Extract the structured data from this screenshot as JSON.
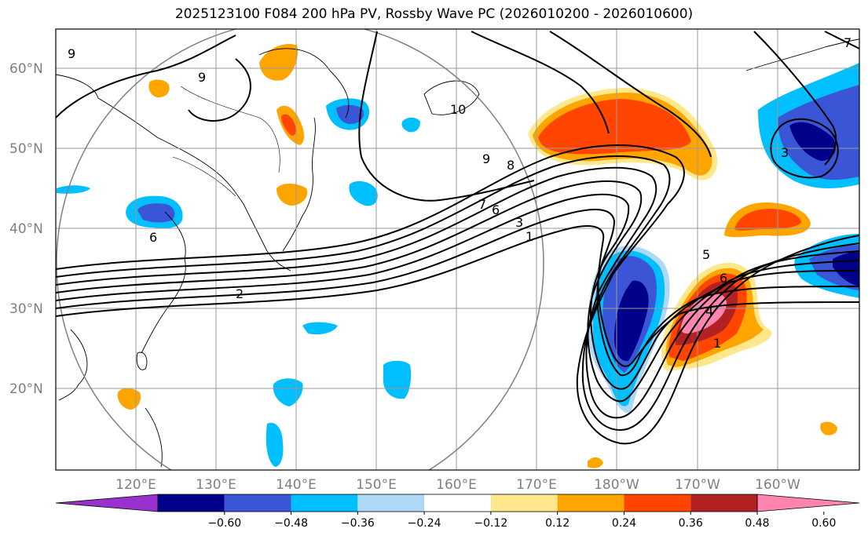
{
  "title": "2025123100 F084 200 hPa PV, Rossby Wave PC (2026010200 - 2026010600)",
  "map": {
    "lat_labels": [
      "60°N",
      "50°N",
      "40°N",
      "30°N",
      "20°N"
    ],
    "lon_labels": [
      "120°E",
      "130°E",
      "140°E",
      "150°E",
      "160°E",
      "170°E",
      "180°W",
      "170°W",
      "160°W"
    ],
    "contour_labels": [
      "9",
      "9",
      "10",
      "9",
      "8",
      "7",
      "6",
      "3",
      "1",
      "2",
      "6",
      "5",
      "6",
      "4",
      "1",
      "3",
      "7"
    ],
    "grid": true,
    "extent": {
      "lon_min": 110,
      "lon_max": 210,
      "lat_min": 10,
      "lat_max": 65
    }
  },
  "colorbar": {
    "ticks": [
      "−0.60",
      "−0.48",
      "−0.36",
      "−0.24",
      "−0.12",
      "0.12",
      "0.24",
      "0.36",
      "0.48",
      "0.60"
    ],
    "colors": [
      "#9932cc",
      "#00008b",
      "#3a56d6",
      "#00bfff",
      "#add8f6",
      "#ffffff",
      "#ffe88c",
      "#ffa500",
      "#ff4500",
      "#b22222",
      "#ff85b0"
    ]
  }
}
